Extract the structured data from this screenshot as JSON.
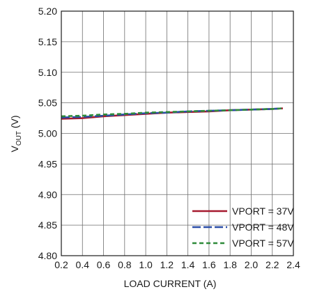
{
  "chart_data": {
    "type": "line",
    "title": "",
    "xlabel": "LOAD CURRENT (A)",
    "ylabel": {
      "main": "V",
      "sub": "OUT",
      "suffix": " (V)"
    },
    "xlim": [
      0.2,
      2.4
    ],
    "ylim": [
      4.8,
      5.2
    ],
    "x_ticks": [
      "0.2",
      "0.4",
      "0.6",
      "0.8",
      "1.0",
      "1.2",
      "1.4",
      "1.6",
      "1.8",
      "2.0",
      "2.2",
      "2.4"
    ],
    "y_ticks": [
      "4.80",
      "4.85",
      "4.90",
      "4.95",
      "5.00",
      "5.05",
      "5.10",
      "5.15",
      "5.20"
    ],
    "grid": true,
    "legend_position": "bottom-right",
    "series": [
      {
        "name": "VPORT = 37V",
        "color": "#a6192e",
        "dash": "solid",
        "x": [
          0.2,
          0.4,
          0.6,
          0.8,
          1.0,
          1.2,
          1.4,
          1.6,
          1.8,
          2.0,
          2.2,
          2.3
        ],
        "y": [
          5.024,
          5.025,
          5.028,
          5.03,
          5.032,
          5.034,
          5.035,
          5.036,
          5.038,
          5.039,
          5.04,
          5.041
        ]
      },
      {
        "name": "VPORT = 48V",
        "color": "#2a4ea8",
        "dash": "long",
        "x": [
          0.2,
          0.4,
          0.6,
          0.8,
          1.0,
          1.2,
          1.4,
          1.6,
          1.8,
          2.0,
          2.2,
          2.3
        ],
        "y": [
          5.026,
          5.027,
          5.029,
          5.031,
          5.033,
          5.034,
          5.036,
          5.037,
          5.038,
          5.039,
          5.04,
          5.041
        ]
      },
      {
        "name": "VPORT = 57V",
        "color": "#2e8b3a",
        "dash": "short",
        "x": [
          0.2,
          0.4,
          0.6,
          0.8,
          1.0,
          1.2,
          1.4,
          1.6,
          1.8,
          2.0,
          2.2,
          2.3
        ],
        "y": [
          5.028,
          5.029,
          5.031,
          5.032,
          5.034,
          5.035,
          5.036,
          5.037,
          5.038,
          5.039,
          5.04,
          5.041
        ]
      }
    ]
  }
}
